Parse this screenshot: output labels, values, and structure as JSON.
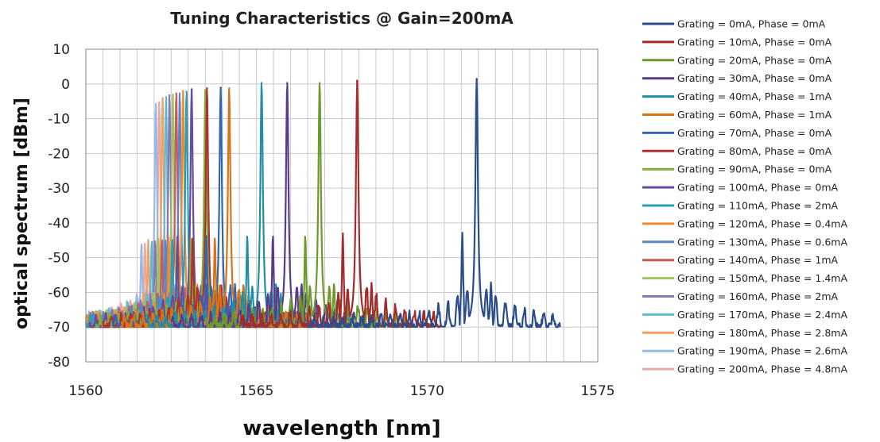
{
  "chart_data": {
    "type": "line",
    "title": "Tuning Characteristics @ Gain=200mA",
    "xlabel": "wavelength [nm]",
    "ylabel": "optical spectrum [dBm]",
    "xlim": [
      1560,
      1575
    ],
    "ylim": [
      -80,
      10
    ],
    "xticks": [
      1560,
      1565,
      1570,
      1575
    ],
    "yticks": [
      10,
      0,
      -10,
      -20,
      -30,
      -40,
      -50,
      -60,
      -70,
      -80
    ],
    "grid": true,
    "legend_position": "right",
    "series": [
      {
        "name": "Grating = 0mA, Phase = 0mA",
        "color": "#2b4d8c",
        "peak": {
          "x": 1571.45,
          "y": 1.5
        },
        "range": [
          1566.5,
          1573.9
        ]
      },
      {
        "name": "Grating = 10mA, Phase = 0mA",
        "color": "#a52a2a",
        "peak": {
          "x": 1567.95,
          "y": 1.0
        },
        "range": [
          1564.5,
          1570.4
        ]
      },
      {
        "name": "Grating = 20mA, Phase = 0mA",
        "color": "#6b9a2a",
        "peak": {
          "x": 1566.85,
          "y": 0.5
        },
        "range": [
          1563.5,
          1569.5
        ]
      },
      {
        "name": "Grating = 30mA, Phase = 0mA",
        "color": "#5a3a8a",
        "peak": {
          "x": 1565.9,
          "y": 0.5
        },
        "range": [
          1562.5,
          1568.5
        ]
      },
      {
        "name": "Grating = 40mA, Phase = 1mA",
        "color": "#1f8fa5",
        "peak": {
          "x": 1565.15,
          "y": 0.5
        },
        "range": [
          1561.8,
          1567.8
        ]
      },
      {
        "name": "Grating = 60mA, Phase = 1mA",
        "color": "#d9731a",
        "peak": {
          "x": 1564.2,
          "y": -1.0
        },
        "range": [
          1561.0,
          1567.0
        ]
      },
      {
        "name": "Grating = 70mA, Phase = 0mA",
        "color": "#3466b0",
        "peak": {
          "x": 1563.95,
          "y": -1.0
        },
        "range": [
          1560.8,
          1566.8
        ]
      },
      {
        "name": "Grating = 80mA, Phase = 0mA",
        "color": "#b03030",
        "peak": {
          "x": 1563.55,
          "y": -1.0
        },
        "range": [
          1560.5,
          1566.5
        ]
      },
      {
        "name": "Grating = 90mA, Phase = 0mA",
        "color": "#7fae3a",
        "peak": {
          "x": 1563.5,
          "y": -1.5
        },
        "range": [
          1560.3,
          1566.3
        ]
      },
      {
        "name": "Grating = 100mA, Phase = 0mA",
        "color": "#6a4a9a",
        "peak": {
          "x": 1563.1,
          "y": -1.5
        },
        "range": [
          1560.1,
          1566.1
        ]
      },
      {
        "name": "Grating = 110mA, Phase = 2mA",
        "color": "#2aa0b8",
        "peak": {
          "x": 1562.95,
          "y": -2.0
        },
        "range": [
          1560.0,
          1565.9
        ]
      },
      {
        "name": "Grating = 120mA, Phase = 0.4mA",
        "color": "#f08a30",
        "peak": {
          "x": 1562.85,
          "y": -2.0
        },
        "range": [
          1560.0,
          1565.8
        ]
      },
      {
        "name": "Grating = 130mA, Phase = 0.6mA",
        "color": "#5b86c4",
        "peak": {
          "x": 1562.75,
          "y": -2.5
        },
        "range": [
          1560.0,
          1565.6
        ]
      },
      {
        "name": "Grating = 140mA, Phase = 1mA",
        "color": "#c85a5a",
        "peak": {
          "x": 1562.65,
          "y": -2.5
        },
        "range": [
          1560.0,
          1565.5
        ]
      },
      {
        "name": "Grating = 150mA, Phase = 1.4mA",
        "color": "#9dc462",
        "peak": {
          "x": 1562.55,
          "y": -3.0
        },
        "range": [
          1560.0,
          1565.4
        ]
      },
      {
        "name": "Grating = 160mA, Phase = 2mA",
        "color": "#8c76b8",
        "peak": {
          "x": 1562.45,
          "y": -3.0
        },
        "range": [
          1560.0,
          1565.3
        ]
      },
      {
        "name": "Grating = 170mA, Phase = 2.4mA",
        "color": "#5fbcd0",
        "peak": {
          "x": 1562.35,
          "y": -3.5
        },
        "range": [
          1560.0,
          1565.2
        ]
      },
      {
        "name": "Grating = 180mA, Phase = 2.8mA",
        "color": "#f4a060",
        "peak": {
          "x": 1562.25,
          "y": -4.0
        },
        "range": [
          1560.0,
          1565.1
        ]
      },
      {
        "name": "Grating = 190mA, Phase = 2.6mA",
        "color": "#9ab8e0",
        "peak": {
          "x": 1562.05,
          "y": -5.5
        },
        "range": [
          1560.0,
          1565.0
        ]
      },
      {
        "name": "Grating = 200mA, Phase = 4.8mA",
        "color": "#e8a8a8",
        "peak": {
          "x": 1562.15,
          "y": -5.0
        },
        "range": [
          1560.0,
          1565.0
        ]
      }
    ]
  }
}
